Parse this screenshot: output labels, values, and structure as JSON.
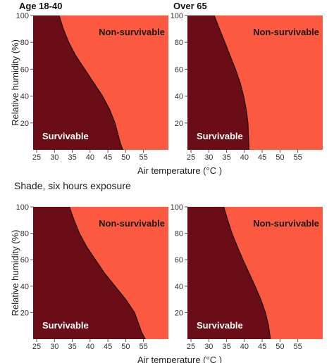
{
  "colors": {
    "survivable": "#6b0d16",
    "non_survivable": "#fb5a40",
    "boundary": "#111111",
    "label_on_dark": "#ffffff",
    "label_on_light": "#1a1a1a"
  },
  "sections": {
    "sun_caption": "",
    "shade_caption": "Shade, six hours exposure"
  },
  "chart_data": [
    {
      "type": "area",
      "title": "Age 18-40",
      "xlabel": "",
      "ylabel": "Relative humidity (%)",
      "xlim": [
        24,
        62
      ],
      "ylim": [
        0,
        100
      ],
      "xticks": [
        "25",
        "30",
        "35",
        "40",
        "45",
        "50",
        "55"
      ],
      "yticks": [
        "20",
        "40",
        "60",
        "80",
        "100"
      ],
      "regions": [
        "Non-survivable",
        "Survivable"
      ],
      "boundary": {
        "x": [
          31.3,
          32.5,
          34.0,
          36.0,
          38.5,
          41.0,
          43.5,
          45.5,
          47.0,
          48.5,
          49.2
        ],
        "y": [
          100,
          90,
          80,
          70,
          60,
          50,
          40,
          30,
          20,
          5,
          0
        ]
      }
    },
    {
      "type": "area",
      "title": "Over 65",
      "xlabel": "Air temperature (°C )",
      "ylabel": "",
      "xlim": [
        24,
        62
      ],
      "ylim": [
        0,
        100
      ],
      "xticks": [
        "25",
        "30",
        "35",
        "40",
        "45",
        "50",
        "55"
      ],
      "yticks": [
        "20",
        "40",
        "60",
        "80",
        "100"
      ],
      "regions": [
        "Non-survivable",
        "Survivable"
      ],
      "boundary": {
        "x": [
          31.5,
          33.0,
          34.5,
          36.0,
          37.5,
          38.8,
          39.8,
          40.5,
          41.0,
          41.3
        ],
        "y": [
          100,
          90,
          80,
          70,
          60,
          50,
          40,
          30,
          20,
          0
        ]
      }
    },
    {
      "type": "area",
      "title": "",
      "xlabel": "",
      "ylabel": "Relative humidity (%)",
      "xlim": [
        24,
        62
      ],
      "ylim": [
        0,
        100
      ],
      "xticks": [
        "25",
        "30",
        "35",
        "40",
        "45",
        "50",
        "55"
      ],
      "yticks": [
        "20",
        "40",
        "60",
        "80",
        "100"
      ],
      "regions": [
        "Non-survivable",
        "Survivable"
      ],
      "boundary": {
        "x": [
          34.2,
          35.5,
          37.0,
          39.0,
          41.5,
          44.0,
          47.0,
          50.0,
          52.5,
          54.5,
          55.5
        ],
        "y": [
          100,
          90,
          80,
          70,
          60,
          50,
          40,
          30,
          20,
          5,
          0
        ]
      }
    },
    {
      "type": "area",
      "title": "",
      "xlabel": "Air temperature (°C )",
      "ylabel": "",
      "xlim": [
        24,
        62
      ],
      "ylim": [
        0,
        100
      ],
      "xticks": [
        "25",
        "30",
        "35",
        "40",
        "45",
        "50",
        "55"
      ],
      "yticks": [
        "20",
        "40",
        "60",
        "80",
        "100"
      ],
      "regions": [
        "Non-survivable",
        "Survivable"
      ],
      "boundary": {
        "x": [
          34.2,
          35.3,
          36.5,
          38.0,
          39.6,
          41.3,
          43.0,
          44.6,
          45.9,
          46.8,
          47.3
        ],
        "y": [
          100,
          90,
          80,
          70,
          60,
          50,
          40,
          30,
          20,
          10,
          0
        ]
      }
    }
  ]
}
